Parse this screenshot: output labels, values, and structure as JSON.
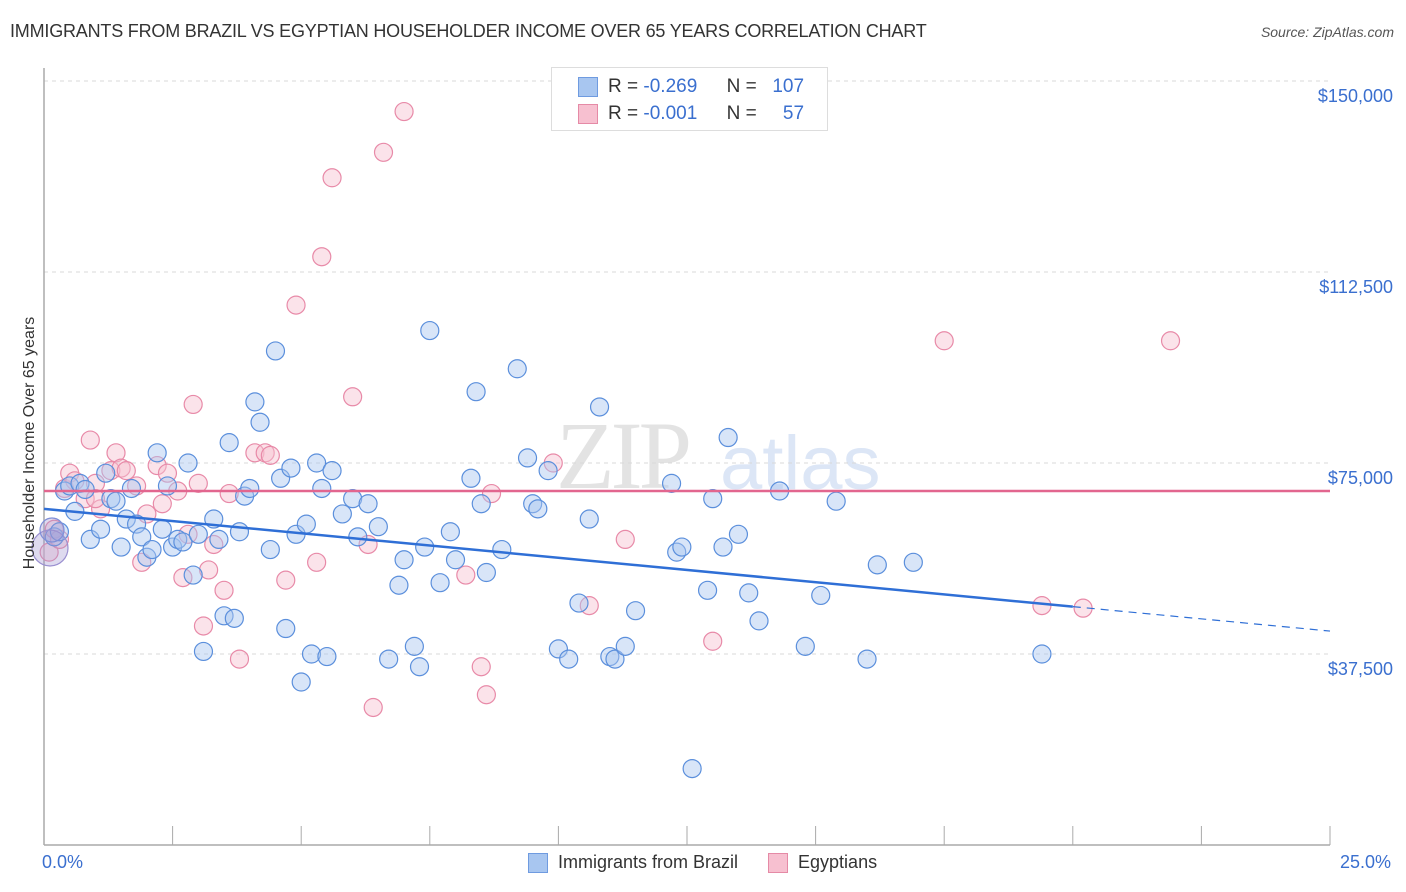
{
  "header": {
    "title": "IMMIGRANTS FROM BRAZIL VS EGYPTIAN HOUSEHOLDER INCOME OVER 65 YEARS CORRELATION CHART",
    "source": "Source: ZipAtlas.com"
  },
  "watermark": {
    "zip": "ZIP",
    "atlas": "atlas"
  },
  "legend_top": {
    "rows": [
      {
        "r_label": "R =",
        "r_value": "-0.269",
        "n_label": "N =",
        "n_value": "107",
        "color": "#a8c6f0",
        "border": "#6f9be0"
      },
      {
        "r_label": "R =",
        "r_value": "-0.001",
        "n_label": "N =",
        "n_value": "57",
        "color": "#f7c0d0",
        "border": "#e58aa6"
      }
    ]
  },
  "axes": {
    "ylabel": "Householder Income Over 65 years",
    "y_ticks": [
      "$150,000",
      "$112,500",
      "$75,000",
      "$37,500"
    ],
    "x_min_label": "0.0%",
    "x_max_label": "25.0%"
  },
  "legend_bottom": {
    "items": [
      {
        "label": "Immigrants from Brazil",
        "color": "#a8c6f0",
        "border": "#6f9be0"
      },
      {
        "label": "Egyptians",
        "color": "#f7c0d0",
        "border": "#e58aa6"
      }
    ]
  },
  "colors": {
    "blue_fill": "rgba(168,198,240,0.45)",
    "blue_stroke": "#5b8fdc",
    "blue_line": "#2f6fd6",
    "pink_fill": "rgba(247,192,208,0.45)",
    "pink_stroke": "#e88aa8",
    "pink_line": "#e2668f",
    "axis_text": "#3a6fcf",
    "grid": "#d8d8d8"
  },
  "chart_data": {
    "type": "scatter",
    "title": "IMMIGRANTS FROM BRAZIL VS EGYPTIAN HOUSEHOLDER INCOME OVER 65 YEARS CORRELATION CHART",
    "xlabel": "",
    "ylabel": "Householder Income Over 65 years",
    "xlim": [
      0,
      25
    ],
    "ylim": [
      0,
      155000
    ],
    "x_unit": "%",
    "y_ticks": [
      37500,
      75000,
      112500,
      150000
    ],
    "grid": true,
    "legend_position": "bottom",
    "series": [
      {
        "name": "Immigrants from Brazil",
        "R": -0.269,
        "N": 107,
        "trend": {
          "x0": 0,
          "y0": 66000,
          "x1": 20,
          "y1": 46800,
          "dashed_to_x": 25,
          "dashed_to_y": 42000
        },
        "points": [
          [
            0.2,
            60500
          ],
          [
            0.3,
            61500
          ],
          [
            0.4,
            69500
          ],
          [
            0.5,
            70500
          ],
          [
            0.6,
            65500
          ],
          [
            0.7,
            71000
          ],
          [
            0.8,
            69800
          ],
          [
            0.9,
            60000
          ],
          [
            1.1,
            62000
          ],
          [
            1.2,
            73000
          ],
          [
            1.3,
            68000
          ],
          [
            1.4,
            67500
          ],
          [
            1.5,
            58500
          ],
          [
            1.6,
            64000
          ],
          [
            1.7,
            70000
          ],
          [
            1.8,
            63000
          ],
          [
            1.9,
            60500
          ],
          [
            2.0,
            56500
          ],
          [
            2.1,
            58000
          ],
          [
            2.2,
            77000
          ],
          [
            2.3,
            62000
          ],
          [
            2.4,
            70500
          ],
          [
            2.5,
            58500
          ],
          [
            2.6,
            60000
          ],
          [
            2.7,
            59500
          ],
          [
            2.8,
            75000
          ],
          [
            2.9,
            53000
          ],
          [
            3.0,
            61000
          ],
          [
            3.1,
            38000
          ],
          [
            3.3,
            64000
          ],
          [
            3.4,
            60000
          ],
          [
            3.5,
            45000
          ],
          [
            3.6,
            79000
          ],
          [
            3.7,
            44500
          ],
          [
            3.8,
            61500
          ],
          [
            3.9,
            68500
          ],
          [
            4.0,
            70000
          ],
          [
            4.1,
            87000
          ],
          [
            4.2,
            83000
          ],
          [
            4.4,
            58000
          ],
          [
            4.5,
            97000
          ],
          [
            4.6,
            72000
          ],
          [
            4.7,
            42500
          ],
          [
            4.8,
            74000
          ],
          [
            4.9,
            61000
          ],
          [
            5.0,
            32000
          ],
          [
            5.1,
            63000
          ],
          [
            5.2,
            37500
          ],
          [
            5.3,
            75000
          ],
          [
            5.4,
            70000
          ],
          [
            5.5,
            37000
          ],
          [
            5.6,
            73500
          ],
          [
            5.8,
            65000
          ],
          [
            6.0,
            68000
          ],
          [
            6.1,
            60500
          ],
          [
            6.3,
            67000
          ],
          [
            6.5,
            62500
          ],
          [
            6.7,
            36500
          ],
          [
            6.9,
            51000
          ],
          [
            7.0,
            56000
          ],
          [
            7.2,
            39000
          ],
          [
            7.3,
            35000
          ],
          [
            7.4,
            58500
          ],
          [
            7.5,
            101000
          ],
          [
            7.7,
            51500
          ],
          [
            7.9,
            61500
          ],
          [
            8.0,
            56000
          ],
          [
            8.3,
            72000
          ],
          [
            8.4,
            89000
          ],
          [
            8.5,
            67000
          ],
          [
            8.6,
            53500
          ],
          [
            8.9,
            58000
          ],
          [
            9.2,
            93500
          ],
          [
            9.4,
            76000
          ],
          [
            9.5,
            67000
          ],
          [
            9.6,
            66000
          ],
          [
            9.8,
            73500
          ],
          [
            10.0,
            38500
          ],
          [
            10.2,
            36500
          ],
          [
            10.4,
            47500
          ],
          [
            10.6,
            64000
          ],
          [
            10.8,
            86000
          ],
          [
            11.0,
            37000
          ],
          [
            11.1,
            36500
          ],
          [
            11.3,
            39000
          ],
          [
            11.5,
            46000
          ],
          [
            12.2,
            71000
          ],
          [
            12.3,
            57500
          ],
          [
            12.4,
            58500
          ],
          [
            12.6,
            15000
          ],
          [
            12.9,
            50000
          ],
          [
            13.0,
            68000
          ],
          [
            13.2,
            58500
          ],
          [
            13.3,
            80000
          ],
          [
            13.5,
            61000
          ],
          [
            13.7,
            49500
          ],
          [
            13.9,
            44000
          ],
          [
            14.3,
            69500
          ],
          [
            14.8,
            39000
          ],
          [
            15.1,
            49000
          ],
          [
            15.4,
            67500
          ],
          [
            16.0,
            36500
          ],
          [
            16.2,
            55000
          ],
          [
            16.9,
            55500
          ],
          [
            19.4,
            37500
          ]
        ]
      },
      {
        "name": "Egyptians",
        "R": -0.001,
        "N": 57,
        "trend": {
          "x0": 0,
          "y0": 69500,
          "x1": 25,
          "y1": 69500
        },
        "points": [
          [
            0.1,
            57500
          ],
          [
            0.2,
            62000
          ],
          [
            0.3,
            60000
          ],
          [
            0.4,
            70000
          ],
          [
            0.5,
            73000
          ],
          [
            0.6,
            71500
          ],
          [
            0.8,
            68000
          ],
          [
            0.9,
            79500
          ],
          [
            1.0,
            71000
          ],
          [
            1.1,
            66000
          ],
          [
            1.3,
            73500
          ],
          [
            1.4,
            77000
          ],
          [
            1.5,
            74000
          ],
          [
            1.6,
            73500
          ],
          [
            1.8,
            70500
          ],
          [
            1.9,
            55500
          ],
          [
            2.0,
            65000
          ],
          [
            2.2,
            74500
          ],
          [
            2.4,
            73000
          ],
          [
            2.6,
            69500
          ],
          [
            2.7,
            52500
          ],
          [
            2.8,
            61000
          ],
          [
            2.9,
            86500
          ],
          [
            3.0,
            71000
          ],
          [
            3.1,
            43000
          ],
          [
            3.2,
            54000
          ],
          [
            3.3,
            59000
          ],
          [
            3.5,
            50000
          ],
          [
            3.6,
            69000
          ],
          [
            3.8,
            36500
          ],
          [
            4.1,
            77000
          ],
          [
            4.3,
            77000
          ],
          [
            4.4,
            76500
          ],
          [
            4.7,
            52000
          ],
          [
            4.9,
            106000
          ],
          [
            5.3,
            55500
          ],
          [
            5.4,
            115500
          ],
          [
            5.6,
            131000
          ],
          [
            6.0,
            88000
          ],
          [
            6.3,
            59000
          ],
          [
            6.4,
            27000
          ],
          [
            6.6,
            136000
          ],
          [
            7.0,
            144000
          ],
          [
            8.2,
            53000
          ],
          [
            8.5,
            35000
          ],
          [
            8.6,
            29500
          ],
          [
            8.7,
            69000
          ],
          [
            9.9,
            75000
          ],
          [
            10.6,
            47000
          ],
          [
            13.0,
            40000
          ],
          [
            17.5,
            99000
          ],
          [
            19.4,
            47000
          ],
          [
            20.2,
            46500
          ],
          [
            21.9,
            99000
          ],
          [
            11.3,
            60000
          ],
          [
            2.3,
            67000
          ],
          [
            1.0,
            68000
          ]
        ]
      }
    ]
  }
}
